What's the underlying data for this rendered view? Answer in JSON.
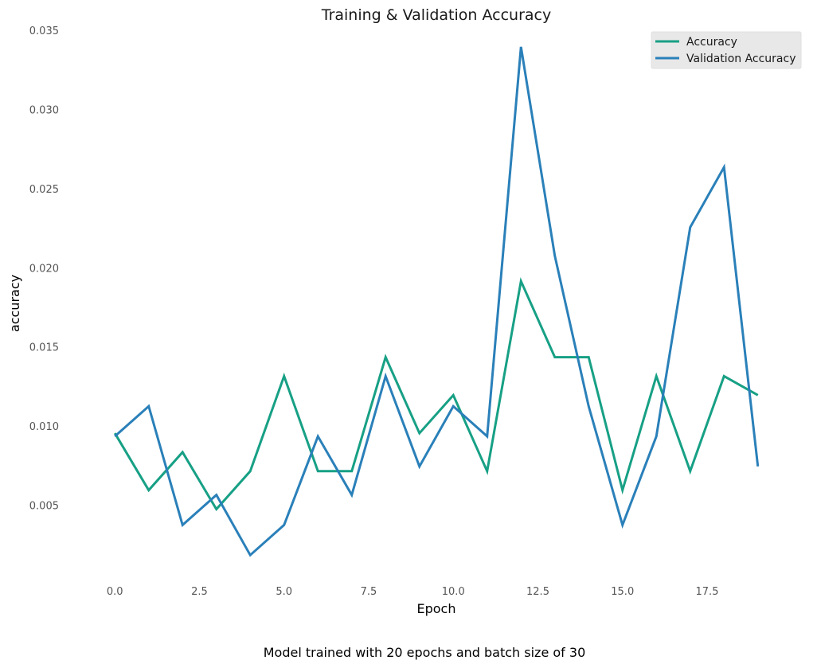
{
  "chart_data": {
    "type": "line",
    "title": "Training & Validation Accuracy",
    "xlabel": "Epoch",
    "ylabel": "accuracy",
    "xlim": [
      -0.9,
      19.9
    ],
    "ylim": [
      0.0002,
      0.0352
    ],
    "x_ticks": [
      0.0,
      2.5,
      5.0,
      7.5,
      10.0,
      12.5,
      15.0,
      17.5
    ],
    "x_tick_labels": [
      "0.0",
      "2.5",
      "5.0",
      "7.5",
      "10.0",
      "12.5",
      "15.0",
      "17.5"
    ],
    "y_ticks": [
      0.005,
      0.01,
      0.015,
      0.02,
      0.025,
      0.03,
      0.035
    ],
    "y_tick_labels": [
      "0.005",
      "0.010",
      "0.015",
      "0.020",
      "0.025",
      "0.030",
      "0.035"
    ],
    "grid": false,
    "legend_position": "top-right",
    "x": [
      0,
      1,
      2,
      3,
      4,
      5,
      6,
      7,
      8,
      9,
      10,
      11,
      12,
      13,
      14,
      15,
      16,
      17,
      18,
      19
    ],
    "series": [
      {
        "name": "Accuracy",
        "color": "#17a085",
        "values": [
          0.0096,
          0.006,
          0.0084,
          0.0048,
          0.0072,
          0.0132,
          0.0072,
          0.0072,
          0.0144,
          0.0096,
          0.012,
          0.0072,
          0.0192,
          0.0144,
          0.0144,
          0.006,
          0.0132,
          0.0072,
          0.0132,
          0.012
        ]
      },
      {
        "name": "Validation Accuracy",
        "color": "#2a80b9",
        "values": [
          0.0094,
          0.0113,
          0.0038,
          0.0057,
          0.0019,
          0.0038,
          0.0094,
          0.0057,
          0.0132,
          0.0075,
          0.0113,
          0.0094,
          0.034,
          0.0208,
          0.0113,
          0.0038,
          0.0094,
          0.0226,
          0.0264,
          0.0075
        ]
      }
    ],
    "caption": "Model trained with 20 epochs and batch size of 30"
  }
}
